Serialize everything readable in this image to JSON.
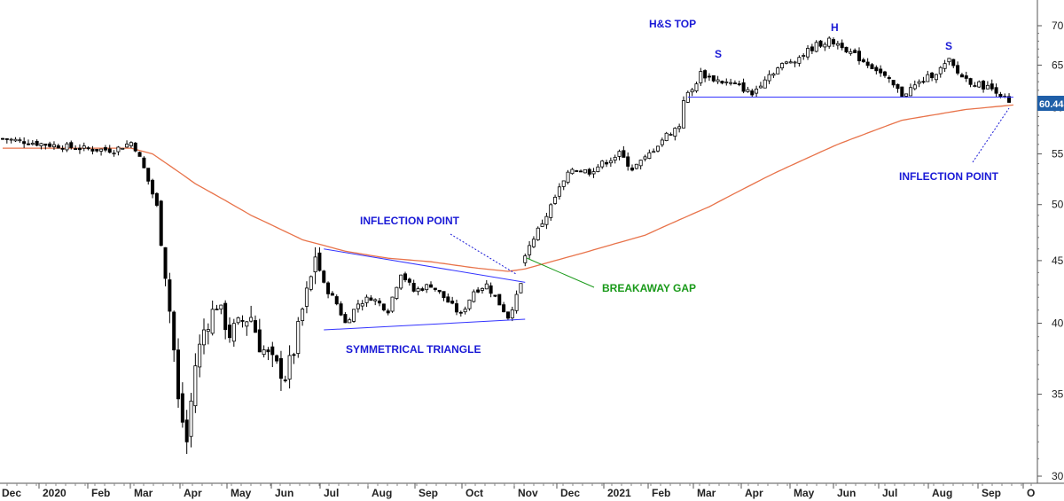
{
  "chart_data": {
    "type": "candlestick",
    "y_scale": "log",
    "ylim": [
      30,
      74
    ],
    "y_ticks": [
      30,
      35,
      40,
      45,
      50,
      55,
      60,
      65,
      70
    ],
    "x_labels": [
      "Dec",
      "2020",
      "Feb",
      "Mar",
      "Apr",
      "May",
      "Jun",
      "Jul",
      "Aug",
      "Sep",
      "Oct",
      "Nov",
      "Dec",
      "2021",
      "Feb",
      "Mar",
      "Apr",
      "May",
      "Jun",
      "Jul",
      "Aug",
      "Sep",
      "O"
    ],
    "last_price": "60.44",
    "colors": {
      "up": "#ffffff",
      "down": "#000000",
      "moving_average": "#e8734a",
      "trendline": "#3333ff",
      "annotation_blue": "#1a1ad6",
      "annotation_green": "#1a9a1a",
      "last_price_bg": "#1f5fa8"
    },
    "price_path": [
      [
        0,
        56.6
      ],
      [
        10,
        56.0
      ],
      [
        20,
        55.5
      ],
      [
        26,
        55.4
      ],
      [
        30,
        56.2
      ],
      [
        31,
        55.6
      ],
      [
        33,
        53.5
      ],
      [
        36,
        49.8
      ],
      [
        37,
        47.0
      ],
      [
        38,
        44.0
      ],
      [
        40,
        38.0
      ],
      [
        41,
        34.5
      ],
      [
        43,
        32.0
      ],
      [
        45,
        37.0
      ],
      [
        47,
        39.5
      ],
      [
        50,
        41.5
      ],
      [
        53,
        39.2
      ],
      [
        56,
        40.2
      ],
      [
        58,
        40.5
      ],
      [
        60,
        38.4
      ],
      [
        63,
        37.2
      ],
      [
        66,
        36.2
      ],
      [
        68,
        38.0
      ],
      [
        70,
        41.0
      ],
      [
        72,
        43.5
      ],
      [
        73,
        45.5
      ],
      [
        75,
        43.0
      ],
      [
        78,
        41.5
      ],
      [
        80,
        40.0
      ],
      [
        83,
        41.5
      ],
      [
        86,
        42.0
      ],
      [
        90,
        41.0
      ],
      [
        93,
        44.0
      ],
      [
        96,
        42.5
      ],
      [
        100,
        43.0
      ],
      [
        103,
        42.0
      ],
      [
        107,
        40.6
      ],
      [
        110,
        42.5
      ],
      [
        113,
        43.0
      ],
      [
        116,
        41.5
      ],
      [
        118,
        40.5
      ],
      [
        120,
        42.0
      ],
      [
        121,
        43.0
      ],
      [
        122,
        45.5
      ],
      [
        124,
        47.0
      ],
      [
        127,
        49.0
      ],
      [
        130,
        51.5
      ],
      [
        133,
        53.5
      ],
      [
        137,
        53.2
      ],
      [
        140,
        54.0
      ],
      [
        144,
        55.0
      ],
      [
        147,
        53.5
      ],
      [
        150,
        54.5
      ],
      [
        153,
        56.0
      ],
      [
        155,
        57.0
      ],
      [
        158,
        58.0
      ],
      [
        159,
        61.0
      ],
      [
        161,
        62.0
      ],
      [
        163,
        64.0
      ],
      [
        165,
        63.5
      ],
      [
        168,
        63.0
      ],
      [
        172,
        62.5
      ],
      [
        175,
        61.5
      ],
      [
        178,
        63.5
      ],
      [
        182,
        65.0
      ],
      [
        186,
        66.0
      ],
      [
        190,
        67.5
      ],
      [
        193,
        68.0
      ],
      [
        196,
        67.5
      ],
      [
        198,
        66.5
      ],
      [
        201,
        65.5
      ],
      [
        204,
        64.5
      ],
      [
        207,
        63.0
      ],
      [
        210,
        61.5
      ],
      [
        213,
        62.5
      ],
      [
        216,
        63.5
      ],
      [
        219,
        64.5
      ],
      [
        221,
        65.5
      ],
      [
        223,
        64.0
      ],
      [
        226,
        63.0
      ],
      [
        229,
        62.5
      ],
      [
        232,
        62.0
      ],
      [
        235,
        60.4
      ]
    ],
    "ma_path": [
      [
        0,
        55.6
      ],
      [
        30,
        55.6
      ],
      [
        35,
        55.0
      ],
      [
        45,
        52.0
      ],
      [
        58,
        49.0
      ],
      [
        70,
        46.8
      ],
      [
        80,
        45.8
      ],
      [
        90,
        45.2
      ],
      [
        100,
        44.9
      ],
      [
        110,
        44.4
      ],
      [
        118,
        44.1
      ],
      [
        122,
        44.3
      ],
      [
        135,
        45.6
      ],
      [
        150,
        47.2
      ],
      [
        165,
        49.8
      ],
      [
        180,
        53.0
      ],
      [
        195,
        56.0
      ],
      [
        210,
        58.6
      ],
      [
        225,
        59.8
      ],
      [
        236,
        60.3
      ]
    ],
    "trendlines": [
      {
        "name": "triangle-upper",
        "from": [
          75,
          46.0
        ],
        "to": [
          122,
          43.2
        ]
      },
      {
        "name": "triangle-lower",
        "from": [
          75,
          39.5
        ],
        "to": [
          122,
          40.3
        ]
      },
      {
        "name": "neckline",
        "from": [
          160,
          61.2
        ],
        "to": [
          236,
          61.2
        ]
      }
    ],
    "annotations": {
      "hs_top": "H&S TOP",
      "left_shoulder": "S",
      "head": "H",
      "right_shoulder": "S",
      "inflection_point_1": "INFLECTION POINT",
      "breakaway_gap": "BREAKAWAY GAP",
      "symmetrical_triangle": "SYMMETRICAL TRIANGLE",
      "inflection_point_2": "INFLECTION POINT"
    }
  }
}
